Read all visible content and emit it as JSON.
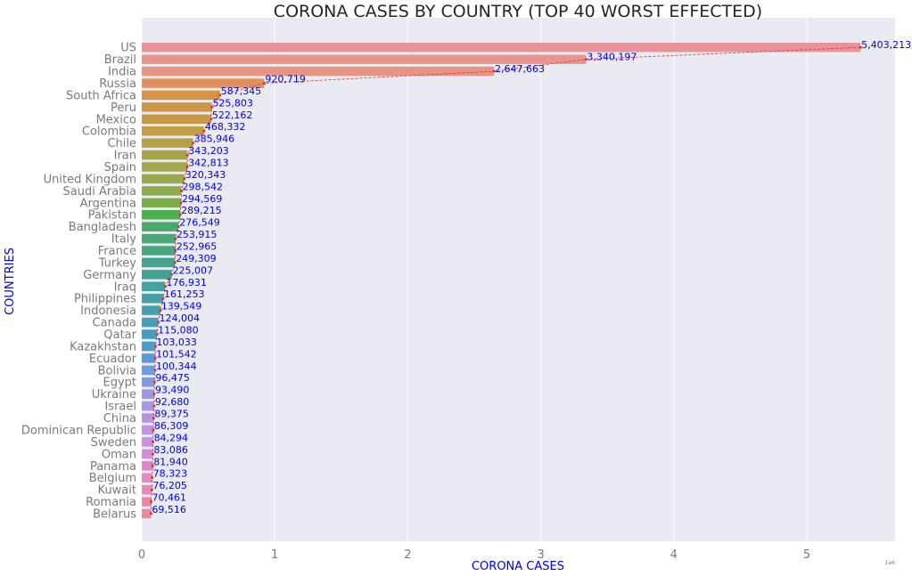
{
  "chart_data": {
    "type": "bar",
    "orientation": "horizontal",
    "title": "CORONA CASES BY COUNTRY (TOP 40 WORST EFFECTED)",
    "xlabel": "CORONA CASES",
    "ylabel": "COUNTRIES",
    "x_scale_note": "1e6",
    "xlim": [
      0,
      5.67
    ],
    "x_ticks": [
      0,
      1,
      2,
      3,
      4,
      5
    ],
    "grid": true,
    "legend": "none",
    "overlay": "dashed red line connecting bar ends",
    "categories": [
      "US",
      "Brazil",
      "India",
      "Russia",
      "South Africa",
      "Peru",
      "Mexico",
      "Colombia",
      "Chile",
      "Iran",
      "Spain",
      "United Kingdom",
      "Saudi Arabia",
      "Argentina",
      "Pakistan",
      "Bangladesh",
      "Italy",
      "France",
      "Turkey",
      "Germany",
      "Iraq",
      "Philippines",
      "Indonesia",
      "Canada",
      "Qatar",
      "Kazakhstan",
      "Ecuador",
      "Bolivia",
      "Egypt",
      "Ukraine",
      "Israel",
      "China",
      "Dominican Republic",
      "Sweden",
      "Oman",
      "Panama",
      "Belgium",
      "Kuwait",
      "Romania",
      "Belarus"
    ],
    "values": [
      5403213,
      3340197,
      2647663,
      920719,
      587345,
      525803,
      522162,
      468332,
      385946,
      343203,
      342813,
      320343,
      298542,
      294569,
      289215,
      276549,
      253915,
      252965,
      249309,
      225007,
      176931,
      161253,
      139549,
      124004,
      115080,
      103033,
      101542,
      100344,
      96475,
      93490,
      92680,
      89375,
      86309,
      84294,
      83086,
      81940,
      78323,
      76205,
      70461,
      69516
    ],
    "value_labels": [
      "5,403,213",
      "3,340,197",
      "2,647,663",
      "920,719",
      "587,345",
      "525,803",
      "522,162",
      "468,332",
      "385,946",
      "343,203",
      "342,813",
      "320,343",
      "298,542",
      "294,569",
      "289,215",
      "276,549",
      "253,915",
      "252,965",
      "249,309",
      "225,007",
      "176,931",
      "161,253",
      "139,549",
      "124,004",
      "115,080",
      "103,033",
      "101,542",
      "100,344",
      "96,475",
      "93,490",
      "92,680",
      "89,375",
      "86,309",
      "84,294",
      "83,086",
      "81,940",
      "78,323",
      "76,205",
      "70,461",
      "69,516"
    ],
    "colors": [
      "#e8939a",
      "#e89590",
      "#e69584",
      "#e0925e",
      "#d79445",
      "#cd9548",
      "#c89a48",
      "#c29e46",
      "#b5a146",
      "#a8a448",
      "#a1a84d",
      "#9aa94c",
      "#8eab4c",
      "#7ead4c",
      "#4cb04c",
      "#4aaa6c",
      "#4aa878",
      "#48a682",
      "#47a48c",
      "#44a294",
      "#44a39e",
      "#45a0a8",
      "#46a0b0",
      "#469fb6",
      "#479dbc",
      "#4a9bc8",
      "#5c9ad6",
      "#6e9ce0",
      "#8299e2",
      "#9a98e2",
      "#a898e2",
      "#b595e2",
      "#c293e2",
      "#cc8ee0",
      "#d68bd8",
      "#de88cc",
      "#e48ac0",
      "#e68ab4",
      "#e68aa8",
      "#e88a9e"
    ]
  }
}
